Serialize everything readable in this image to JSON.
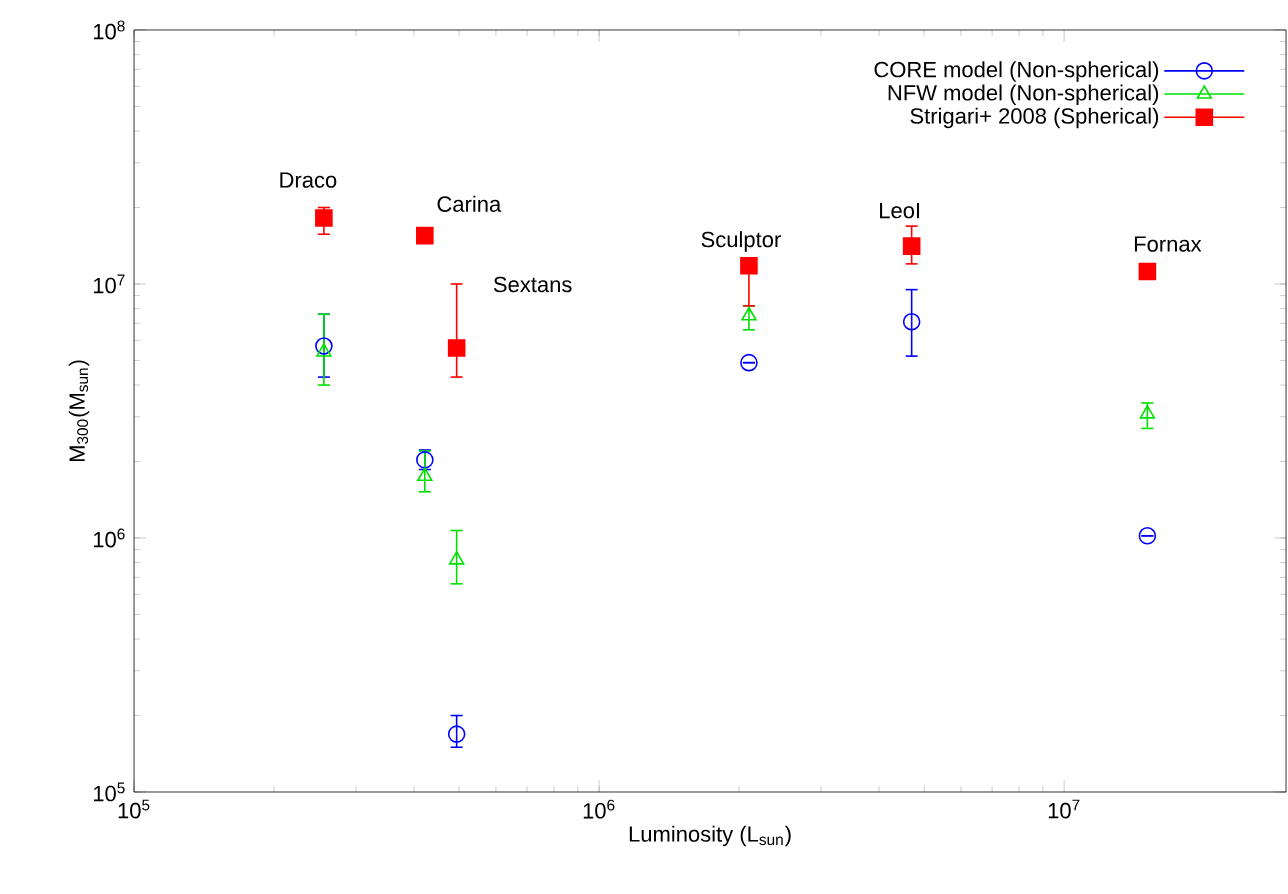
{
  "chart_data": {
    "type": "scatter",
    "xlabel": "Luminosity (L$_{sun}$)",
    "ylabel": "M$_{300}$(M$_{sun}$)",
    "log": "xy",
    "grid": false,
    "legend": "top right",
    "x": [
      256000,
      422000,
      494000,
      2100000,
      4700000,
      15100000
    ],
    "xlim": [
      100000,
      30000000
    ],
    "xticks": [
      {
        "value": 100000,
        "label": "10$^{5}$"
      },
      {
        "value": 1000000,
        "label": "10$^{6}$"
      },
      {
        "value": 10000000,
        "label": "10$^{7}$"
      }
    ],
    "ylim": [
      100000,
      100000000
    ],
    "yticks": [
      {
        "value": 100000,
        "label": "10$^{5}$"
      },
      {
        "value": 1000000,
        "label": "10$^{6}$"
      },
      {
        "value": 10000000,
        "label": "10$^{7}$"
      },
      {
        "value": 100000000,
        "label": "10$^{8}$"
      }
    ],
    "series": [
      {
        "name": "CORE model (Non-spherical)",
        "color": "#0000ff",
        "marker": "circle",
        "values": [
          5700000,
          2030000,
          169000,
          4900000,
          7100000,
          1020000
        ],
        "errors": [
          [
            4300000,
            7600000
          ],
          [
            1860000,
            2220000
          ],
          [
            150000,
            200000
          ],
          null,
          [
            5200000,
            9500000
          ],
          null
        ]
      },
      {
        "name": "NFW model (Non-spherical)",
        "color": "#00e000",
        "marker": "triangle",
        "values": [
          5400000,
          1750000,
          820000,
          7500000,
          null,
          3080000
        ],
        "errors": [
          [
            4000000,
            7600000
          ],
          [
            1520000,
            2200000
          ],
          [
            660000,
            1070000
          ],
          [
            6600000,
            8200000
          ],
          null,
          [
            2700000,
            3400000
          ]
        ]
      },
      {
        "name": "Strigari+ 2008 (Spherical)",
        "color": "#ff0000",
        "marker": "square",
        "values": [
          18200000,
          15500000,
          5600000,
          11800000,
          14100000,
          11200000
        ],
        "errors": [
          [
            15700000,
            20000000
          ],
          null,
          [
            4300000,
            10000000
          ],
          [
            8200000,
            12500000
          ],
          [
            12000000,
            16900000
          ],
          null
        ]
      }
    ],
    "annotations": [
      "Draco",
      "Carina",
      "Sextans",
      "Sculptor",
      "LeoI",
      "Fornax"
    ]
  }
}
